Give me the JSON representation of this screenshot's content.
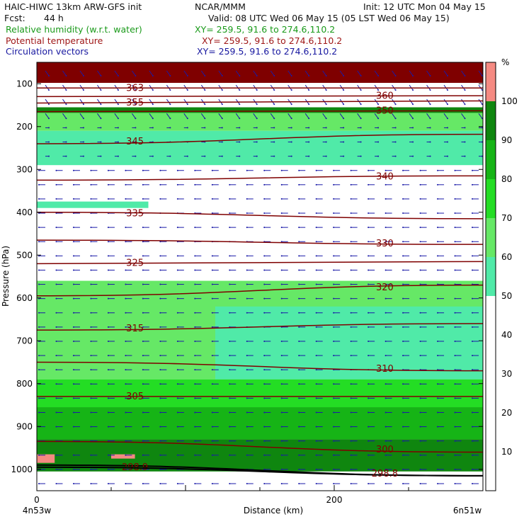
{
  "header": {
    "model": "HAIC-HIWC 13km ARW-GFS init",
    "org": "NCAR/MMM",
    "init": "Init: 12 UTC Mon 04 May 15",
    "fcst_label": "Fcst:",
    "fcst_value": "44 h",
    "valid": "Valid: 08 UTC Wed 06 May 15 (05 LST Wed 06 May 15)",
    "field1_name": "Relative humidity (w.r.t. water)",
    "field1_xy": "XY= 259.5, 91.6 to 274.6,110.2",
    "field2_name": "Potential temperature",
    "field2_xy": "XY= 259.5, 91.6 to 274.6,110.2",
    "field3_name": "Circulation vectors",
    "field3_xy": "XY= 259.5, 91.6 to 274.6,110.2"
  },
  "colors": {
    "rh_40_50": "#ffffff",
    "rh_50_60": "#50eaa8",
    "rh_60_70": "#66e866",
    "rh_70_80": "#24dd24",
    "rh_80_90": "#16b416",
    "rh_90_100": "#0f860f",
    "rh_100plus": "#f58a82",
    "top_band": "#7f0000",
    "theta": "#7f0000",
    "vectors": "#1a1aa8"
  },
  "chart_data": {
    "type": "heatmap",
    "xlabel": "Distance (km)",
    "ylabel": "Pressure (hPa)",
    "xlim": [
      0,
      300
    ],
    "ylim": [
      1050,
      50
    ],
    "x_ticks": [
      "0",
      "200"
    ],
    "y_ticks": [
      "100",
      "200",
      "300",
      "400",
      "500",
      "600",
      "700",
      "800",
      "900",
      "1000"
    ],
    "left_endpoint": "4n53w",
    "right_endpoint": "6n51w",
    "colorbar": {
      "unit": "%",
      "ticks": [
        "10",
        "20",
        "30",
        "40",
        "50",
        "60",
        "70",
        "80",
        "90",
        "100"
      ]
    },
    "rh_bands": [
      {
        "level": ">100",
        "regions": [
          {
            "x": [
              0,
              300
            ],
            "p": [
              50,
              98
            ]
          },
          {
            "x": [
              0,
              12
            ],
            "p": [
              965,
              985
            ]
          },
          {
            "x": [
              50,
              66
            ],
            "p": [
              965,
              975
            ]
          }
        ]
      },
      {
        "level": "90-100",
        "regions": [
          {
            "x": [
              0,
              300
            ],
            "p": [
              930,
              1005
            ]
          },
          {
            "x": [
              0,
              300
            ],
            "p": [
              155,
              168
            ]
          }
        ]
      },
      {
        "level": "80-90",
        "regions": [
          {
            "x": [
              0,
              300
            ],
            "p": [
              855,
              930
            ]
          }
        ]
      },
      {
        "level": "70-80",
        "regions": [
          {
            "x": [
              0,
              300
            ],
            "p": [
              790,
              855
            ]
          }
        ]
      },
      {
        "level": "60-70",
        "regions": [
          {
            "x": [
              0,
              300
            ],
            "p": [
              560,
              790
            ]
          },
          {
            "x": [
              0,
              300
            ],
            "p": [
              168,
              210
            ]
          }
        ]
      },
      {
        "level": "50-60",
        "regions": [
          {
            "x": [
              120,
              300
            ],
            "p": [
              620,
              790
            ]
          },
          {
            "x": [
              0,
              300
            ],
            "p": [
              210,
              290
            ]
          },
          {
            "x": [
              0,
              75
            ],
            "p": [
              375,
              390
            ]
          }
        ]
      }
    ],
    "theta_contours": [
      {
        "label": "363",
        "x": [
          0,
          300
        ],
        "p": [
          110,
          110
        ]
      },
      {
        "label": "360",
        "x": [
          0,
          300
        ],
        "p": [
          130,
          128
        ]
      },
      {
        "label": "355",
        "x": [
          0,
          300
        ],
        "p": [
          145,
          140
        ]
      },
      {
        "label": "350",
        "x": [
          0,
          300
        ],
        "p": [
          165,
          163
        ]
      },
      {
        "label": "345",
        "x": [
          0,
          300
        ],
        "p": [
          240,
          218
        ]
      },
      {
        "label": "340",
        "x": [
          0,
          300
        ],
        "p": [
          325,
          315
        ]
      },
      {
        "label": "335",
        "x": [
          0,
          300
        ],
        "p": [
          400,
          415
        ]
      },
      {
        "label": "330",
        "x": [
          0,
          300
        ],
        "p": [
          465,
          475
        ]
      },
      {
        "label": "325",
        "x": [
          0,
          300
        ],
        "p": [
          520,
          515
        ]
      },
      {
        "label": "320",
        "x": [
          0,
          300
        ],
        "p": [
          595,
          570
        ]
      },
      {
        "label": "315",
        "x": [
          0,
          300
        ],
        "p": [
          675,
          660
        ]
      },
      {
        "label": "310",
        "x": [
          0,
          300
        ],
        "p": [
          750,
          770
        ]
      },
      {
        "label": "305",
        "x": [
          0,
          300
        ],
        "p": [
          830,
          830
        ]
      },
      {
        "label": "300",
        "x": [
          0,
          300
        ],
        "p": [
          935,
          960
        ]
      },
      {
        "label": "298.9",
        "x": [
          0,
          300
        ],
        "p": [
          990,
          1015
        ]
      },
      {
        "label": "298.8",
        "x": [
          0,
          300
        ],
        "p": [
          995,
          1015
        ]
      }
    ],
    "vectors": {
      "direction": "mostly westward aloft, eastward in upper band",
      "rows": 30,
      "cols": 26
    }
  }
}
